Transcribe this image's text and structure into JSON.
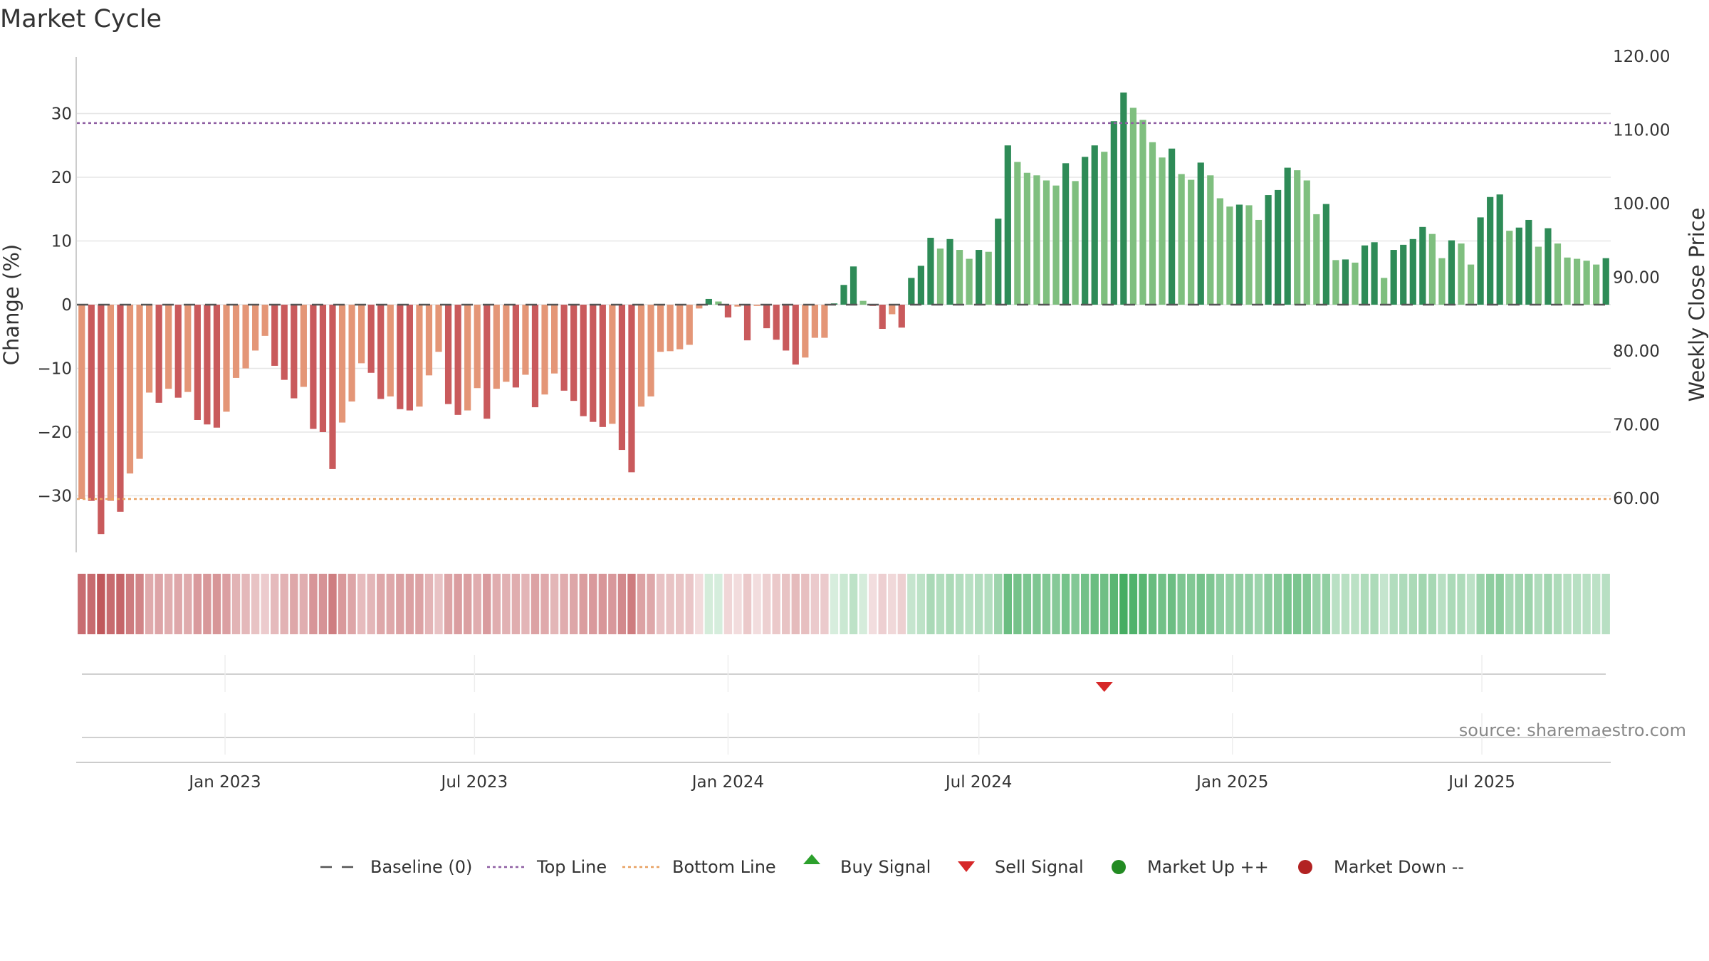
{
  "chart_data": {
    "type": "bar",
    "title": "Market Cycle",
    "ylabel_left": "Change (%)",
    "ylabel_right": "Weekly Close Price",
    "ylim": [
      -39,
      39
    ],
    "y2lim": [
      50.0,
      120.0
    ],
    "left_ticks": [
      {
        "value": 30,
        "label": "30"
      },
      {
        "value": 20,
        "label": "20"
      },
      {
        "value": 10,
        "label": "10"
      },
      {
        "value": 0,
        "label": "0"
      },
      {
        "value": -10,
        "label": "−10"
      },
      {
        "value": -20,
        "label": "−20"
      },
      {
        "value": -30,
        "label": "−30"
      }
    ],
    "right_ticks": [
      {
        "value": 120,
        "label": "120.00"
      },
      {
        "value": 110,
        "label": "110.00"
      },
      {
        "value": 100,
        "label": "100.00"
      },
      {
        "value": 90,
        "label": "90.00"
      },
      {
        "value": 80,
        "label": "80.00"
      },
      {
        "value": 70,
        "label": "70.00"
      },
      {
        "value": 60,
        "label": "60.00"
      }
    ],
    "date_ticks": [
      "Jan 2023",
      "Jul 2023",
      "Jan 2024",
      "Jul 2024",
      "Jan 2025",
      "Jul 2025"
    ],
    "top_line": 28.5,
    "bottom_line": -30.5,
    "start_date": "2022-09-19",
    "interval_days": 7,
    "values": [
      -30.5,
      -30.8,
      -36,
      -30.8,
      -32.5,
      -26.5,
      -24.2,
      -13.8,
      -15.4,
      -13.2,
      -14.6,
      -13.7,
      -18.1,
      -18.8,
      -19.3,
      -16.8,
      -11.5,
      -10,
      -7.2,
      -4.9,
      -9.6,
      -11.8,
      -14.7,
      -12.9,
      -19.5,
      -20,
      -25.8,
      -18.5,
      -15.2,
      -9.2,
      -10.7,
      -14.8,
      -14.4,
      -16.4,
      -16.6,
      -16,
      -11.1,
      -7.4,
      -15.6,
      -17.3,
      -16.6,
      -13.1,
      -17.9,
      -13.2,
      -12.1,
      -13,
      -11,
      -16.1,
      -14.1,
      -10.8,
      -13.5,
      -15.1,
      -17.5,
      -18.4,
      -19.2,
      -18.7,
      -22.8,
      -26.3,
      -16,
      -14.4,
      -7.4,
      -7.3,
      -7,
      -6.3,
      -0.6,
      0.9,
      0.5,
      -2,
      -0.3,
      -5.6,
      -0.2,
      -3.7,
      -5.5,
      -7.2,
      -9.4,
      -8.3,
      -5.2,
      -5.2,
      0.2,
      3.1,
      6,
      0.6,
      -0.2,
      -3.8,
      -1.5,
      -3.6,
      4.2,
      6.1,
      10.5,
      8.8,
      10.3,
      8.6,
      7.2,
      8.6,
      8.3,
      13.5,
      25,
      22.4,
      20.7,
      20.3,
      19.5,
      18.7,
      22.2,
      19.4,
      23.2,
      25,
      24,
      28.8,
      33.3,
      30.9,
      29,
      25.5,
      23.1,
      24.5,
      20.5,
      19.6,
      22.3,
      20.3,
      16.7,
      15.4,
      15.7,
      15.6,
      13.3,
      17.2,
      18,
      21.5,
      21.1,
      19.5,
      14.2,
      15.8,
      7,
      7.1,
      6.6,
      9.3,
      9.8,
      4.2,
      8.6,
      9.4,
      10.3,
      12.2,
      11.1,
      7.3,
      10.1,
      9.6,
      6.3,
      13.7,
      16.9,
      17.3,
      11.6,
      12.1,
      13.3,
      9.1,
      12,
      9.6,
      7.4,
      7.2,
      6.9,
      6.3,
      7.3
    ],
    "sell_signals": [
      {
        "index": 106
      }
    ],
    "buy_signals": [],
    "colors": {
      "strong_down": "#c95a5c",
      "weak_down": "#e49677",
      "strong_up": "#2e8b57",
      "weak_up": "#7fbf7f",
      "top_line": "#8e5ea2",
      "bottom_line": "#e8a060",
      "baseline": "#555555",
      "sell": "#d62728",
      "buy": "#2ca02c",
      "market_up": "#228b22",
      "market_down": "#b22222"
    },
    "legend_position": "bottom-center",
    "legend": [
      {
        "key": "baseline",
        "label": "Baseline (0)"
      },
      {
        "key": "top",
        "label": "Top Line"
      },
      {
        "key": "bottom",
        "label": "Bottom Line"
      },
      {
        "key": "buy",
        "label": "Buy Signal"
      },
      {
        "key": "sell",
        "label": "Sell Signal"
      },
      {
        "key": "up",
        "label": "Market Up ++"
      },
      {
        "key": "down",
        "label": "Market Down --"
      }
    ],
    "source": "source: sharemaestro.com"
  }
}
